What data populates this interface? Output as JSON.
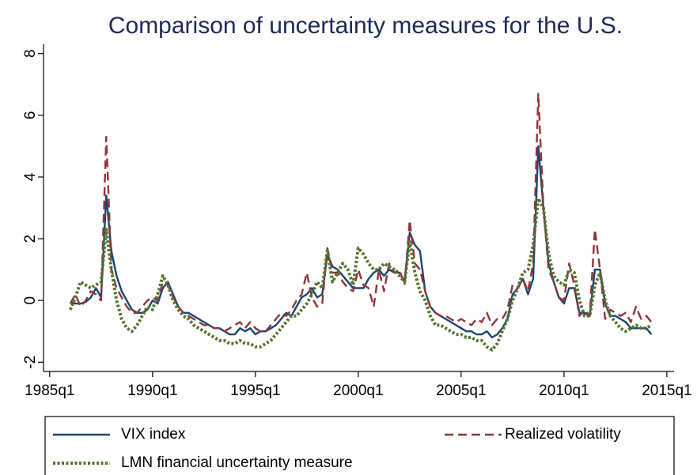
{
  "chart_data": {
    "type": "line",
    "title": "Comparison of uncertainty measures for the U.S.",
    "x": [
      104,
      105,
      106,
      107,
      108,
      109,
      110,
      111,
      112,
      113,
      114,
      115,
      116,
      117,
      118,
      119,
      120,
      121,
      122,
      123,
      124,
      125,
      126,
      127,
      128,
      129,
      130,
      131,
      132,
      133,
      134,
      135,
      136,
      137,
      138,
      139,
      140,
      141,
      142,
      143,
      144,
      145,
      146,
      147,
      148,
      149,
      150,
      151,
      152,
      153,
      154,
      155,
      156,
      157,
      158,
      159,
      160,
      161,
      162,
      163,
      164,
      165,
      166,
      167,
      168,
      169,
      170,
      171,
      172,
      173,
      174,
      175,
      176,
      177,
      178,
      179,
      180,
      181,
      182,
      183,
      184,
      185,
      186,
      187,
      188,
      189,
      190,
      191,
      192,
      193,
      194,
      195,
      196,
      197,
      198,
      199,
      200,
      201,
      202,
      203,
      204,
      205,
      206,
      207,
      208,
      209,
      210,
      211,
      212,
      213,
      214,
      215,
      216,
      217
    ],
    "series": [
      {
        "name": "VIX index",
        "color": "#1a476f",
        "dash": "solid",
        "values": [
          -0.05,
          -0.1,
          -0.1,
          -0.05,
          0.1,
          0.4,
          0.1,
          3.4,
          1.6,
          0.8,
          0.3,
          0.0,
          -0.3,
          -0.4,
          -0.4,
          -0.3,
          0.0,
          -0.1,
          0.4,
          0.6,
          0.2,
          -0.2,
          -0.4,
          -0.4,
          -0.5,
          -0.6,
          -0.7,
          -0.8,
          -0.9,
          -0.9,
          -1.0,
          -1.1,
          -1.1,
          -0.9,
          -1.0,
          -0.9,
          -1.1,
          -1.0,
          -1.0,
          -0.9,
          -0.8,
          -0.6,
          -0.4,
          -0.5,
          -0.2,
          0.1,
          0.2,
          0.4,
          0.1,
          0.2,
          1.5,
          1.1,
          1.0,
          0.8,
          0.6,
          0.4,
          0.4,
          0.4,
          0.7,
          0.9,
          1.0,
          0.8,
          1.0,
          0.9,
          0.9,
          0.6,
          2.2,
          1.8,
          1.6,
          0.3,
          -0.2,
          -0.4,
          -0.5,
          -0.6,
          -0.7,
          -0.8,
          -0.9,
          -1.0,
          -1.0,
          -1.1,
          -1.1,
          -1.0,
          -1.2,
          -1.1,
          -0.9,
          -0.6,
          0.2,
          0.4,
          0.7,
          0.2,
          0.7,
          5.0,
          3.0,
          1.2,
          0.6,
          0.1,
          -0.1,
          0.4,
          0.4,
          -0.4,
          -0.4,
          -0.5,
          1.0,
          1.0,
          -0.1,
          -0.5,
          -0.5,
          -0.6,
          -0.7,
          -0.9,
          -0.9,
          -0.9,
          -0.9,
          -1.1
        ]
      },
      {
        "name": "Realized volatility",
        "color": "#90353b",
        "dash": "dashed",
        "values": [
          -0.1,
          0.2,
          -0.2,
          0.0,
          0.3,
          0.2,
          0.0,
          5.3,
          1.0,
          0.4,
          0.1,
          -0.2,
          -0.4,
          -0.4,
          -0.2,
          0.0,
          0.1,
          0.0,
          0.6,
          0.5,
          0.1,
          -0.2,
          -0.4,
          -0.5,
          -0.6,
          -0.7,
          -0.8,
          -0.8,
          -0.9,
          -0.9,
          -1.0,
          -0.9,
          -0.8,
          -0.7,
          -0.9,
          -0.7,
          -0.9,
          -1.0,
          -1.0,
          -0.8,
          -0.6,
          -0.4,
          -0.5,
          -0.3,
          0.0,
          0.2,
          0.9,
          0.1,
          -0.2,
          -0.1,
          1.7,
          0.9,
          0.9,
          0.6,
          0.4,
          0.3,
          1.0,
          0.5,
          0.4,
          -0.2,
          1.0,
          0.3,
          1.2,
          0.9,
          1.0,
          0.5,
          2.6,
          1.2,
          1.0,
          0.3,
          -0.2,
          -0.4,
          -0.5,
          -0.5,
          -0.6,
          -0.7,
          -0.6,
          -0.7,
          -0.8,
          -0.6,
          -0.7,
          -0.4,
          -0.8,
          -0.6,
          -0.6,
          -0.3,
          0.5,
          0.4,
          0.7,
          0.3,
          1.2,
          6.7,
          3.0,
          1.0,
          0.6,
          0.1,
          0.0,
          1.2,
          0.5,
          -0.5,
          -0.3,
          -0.5,
          2.3,
          1.0,
          -0.6,
          -0.3,
          -0.4,
          -0.5,
          -0.4,
          -0.7,
          -0.2,
          -0.6,
          -0.5,
          -0.7
        ]
      },
      {
        "name": "LMN financial uncertainty measure",
        "color": "#55752f",
        "dash": "dotted",
        "values": [
          -0.3,
          0.1,
          0.6,
          0.5,
          0.4,
          0.5,
          0.6,
          2.3,
          1.0,
          0.0,
          -0.6,
          -0.9,
          -1.0,
          -0.8,
          -0.5,
          -0.2,
          -0.3,
          0.2,
          0.8,
          0.5,
          0.0,
          -0.3,
          -0.5,
          -0.6,
          -0.8,
          -0.9,
          -1.0,
          -1.1,
          -1.2,
          -1.3,
          -1.3,
          -1.4,
          -1.4,
          -1.3,
          -1.4,
          -1.4,
          -1.5,
          -1.5,
          -1.4,
          -1.3,
          -1.1,
          -0.9,
          -0.7,
          -0.5,
          -0.5,
          -0.3,
          -0.1,
          0.2,
          0.6,
          0.4,
          1.6,
          0.6,
          0.9,
          1.2,
          1.0,
          0.5,
          1.7,
          1.5,
          1.2,
          1.0,
          1.0,
          1.2,
          1.1,
          1.0,
          0.8,
          0.6,
          1.9,
          0.9,
          0.3,
          0.0,
          -0.5,
          -0.8,
          -0.8,
          -0.9,
          -1.0,
          -1.1,
          -1.1,
          -1.2,
          -1.2,
          -1.3,
          -1.3,
          -1.5,
          -1.6,
          -1.4,
          -1.0,
          -0.6,
          0.0,
          0.4,
          0.9,
          1.0,
          1.8,
          3.3,
          3.0,
          1.5,
          0.8,
          0.6,
          0.5,
          1.0,
          0.9,
          0.0,
          -0.5,
          -0.5,
          0.5,
          0.9,
          0.0,
          -0.5,
          -0.7,
          -0.9,
          -1.0,
          -0.9,
          -0.8,
          -0.9,
          -0.9,
          -0.8
        ]
      }
    ],
    "xlim": [
      98.8,
      221.4
    ],
    "xticks": [
      {
        "value": 100,
        "label": "1985q1"
      },
      {
        "value": 120,
        "label": "1990q1"
      },
      {
        "value": 140,
        "label": "1995q1"
      },
      {
        "value": 160,
        "label": "2000q1"
      },
      {
        "value": 180,
        "label": "2005q1"
      },
      {
        "value": 200,
        "label": "2010q1"
      },
      {
        "value": 220,
        "label": "2015q1"
      }
    ],
    "ylim": [
      -2.3,
      8.3
    ],
    "yticks": [
      -2,
      0,
      2,
      4,
      6,
      8
    ],
    "grid": false
  }
}
